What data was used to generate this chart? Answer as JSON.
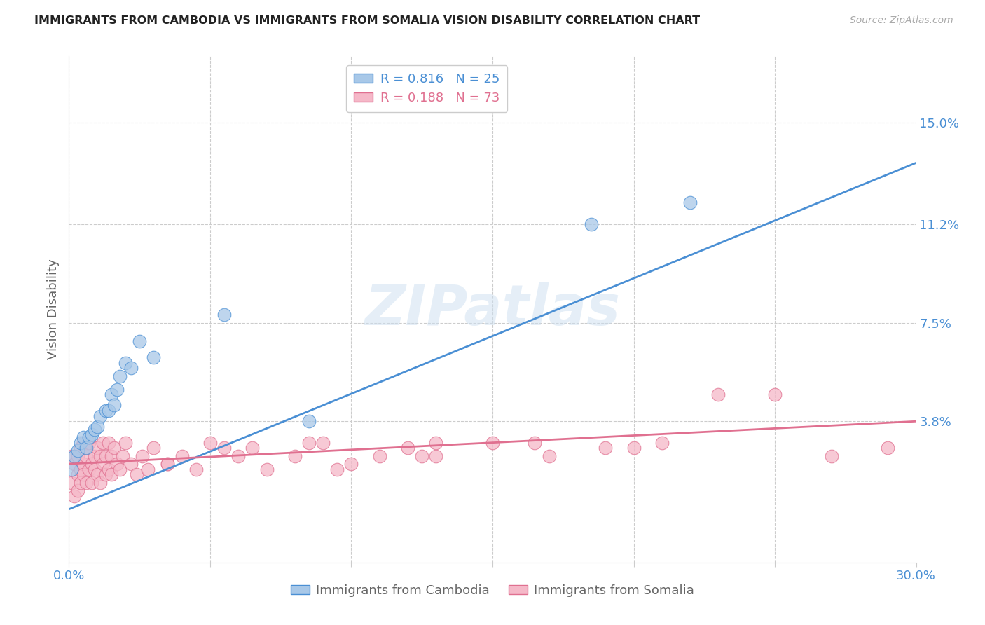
{
  "title": "IMMIGRANTS FROM CAMBODIA VS IMMIGRANTS FROM SOMALIA VISION DISABILITY CORRELATION CHART",
  "source": "Source: ZipAtlas.com",
  "ylabel": "Vision Disability",
  "xlim": [
    0.0,
    0.3
  ],
  "ylim": [
    -0.015,
    0.175
  ],
  "xticks": [
    0.0,
    0.05,
    0.1,
    0.15,
    0.2,
    0.25,
    0.3
  ],
  "ytick_labels": [
    "3.8%",
    "7.5%",
    "11.2%",
    "15.0%"
  ],
  "ytick_values": [
    0.038,
    0.075,
    0.112,
    0.15
  ],
  "watermark": "ZIPatlas",
  "background_color": "#ffffff",
  "grid_color": "#cccccc",
  "cambodia_fill": "#a8c8e8",
  "somalia_fill": "#f5b8c8",
  "cambodia_edge": "#4a8fd4",
  "somalia_edge": "#e07090",
  "cambodia_line_color": "#4a8fd4",
  "somalia_line_color": "#e07090",
  "legend_R_cambodia": "R = 0.816",
  "legend_N_cambodia": "N = 25",
  "legend_R_somalia": "R = 0.188",
  "legend_N_somalia": "N = 73",
  "cambodia_scatter_x": [
    0.001,
    0.002,
    0.003,
    0.004,
    0.005,
    0.006,
    0.007,
    0.008,
    0.009,
    0.01,
    0.011,
    0.013,
    0.014,
    0.015,
    0.016,
    0.017,
    0.018,
    0.02,
    0.022,
    0.025,
    0.03,
    0.055,
    0.085,
    0.185,
    0.22
  ],
  "cambodia_scatter_y": [
    0.02,
    0.025,
    0.027,
    0.03,
    0.032,
    0.028,
    0.032,
    0.033,
    0.035,
    0.036,
    0.04,
    0.042,
    0.042,
    0.048,
    0.044,
    0.05,
    0.055,
    0.06,
    0.058,
    0.068,
    0.062,
    0.078,
    0.038,
    0.112,
    0.12
  ],
  "somalia_scatter_x": [
    0.001,
    0.001,
    0.002,
    0.002,
    0.003,
    0.003,
    0.003,
    0.004,
    0.004,
    0.004,
    0.005,
    0.005,
    0.005,
    0.006,
    0.006,
    0.006,
    0.007,
    0.007,
    0.008,
    0.008,
    0.009,
    0.009,
    0.01,
    0.01,
    0.011,
    0.011,
    0.012,
    0.012,
    0.013,
    0.013,
    0.014,
    0.014,
    0.015,
    0.015,
    0.016,
    0.017,
    0.018,
    0.019,
    0.02,
    0.022,
    0.024,
    0.026,
    0.028,
    0.03,
    0.035,
    0.04,
    0.045,
    0.05,
    0.06,
    0.065,
    0.07,
    0.08,
    0.09,
    0.1,
    0.12,
    0.13,
    0.15,
    0.17,
    0.19,
    0.21,
    0.23,
    0.25,
    0.27,
    0.29,
    0.13,
    0.11,
    0.085,
    0.055,
    0.035,
    0.165,
    0.125,
    0.095,
    0.2
  ],
  "somalia_scatter_y": [
    0.015,
    0.025,
    0.01,
    0.022,
    0.018,
    0.025,
    0.012,
    0.02,
    0.028,
    0.015,
    0.022,
    0.03,
    0.018,
    0.025,
    0.015,
    0.028,
    0.02,
    0.03,
    0.022,
    0.015,
    0.025,
    0.02,
    0.028,
    0.018,
    0.025,
    0.015,
    0.022,
    0.03,
    0.018,
    0.025,
    0.02,
    0.03,
    0.025,
    0.018,
    0.028,
    0.022,
    0.02,
    0.025,
    0.03,
    0.022,
    0.018,
    0.025,
    0.02,
    0.028,
    0.022,
    0.025,
    0.02,
    0.03,
    0.025,
    0.028,
    0.02,
    0.025,
    0.03,
    0.022,
    0.028,
    0.025,
    0.03,
    0.025,
    0.028,
    0.03,
    0.048,
    0.048,
    0.025,
    0.028,
    0.03,
    0.025,
    0.03,
    0.028,
    0.022,
    0.03,
    0.025,
    0.02,
    0.028
  ],
  "cam_line_x": [
    0.0,
    0.3
  ],
  "cam_line_y": [
    0.005,
    0.135
  ],
  "som_line_x": [
    0.0,
    0.3
  ],
  "som_line_y": [
    0.022,
    0.038
  ]
}
